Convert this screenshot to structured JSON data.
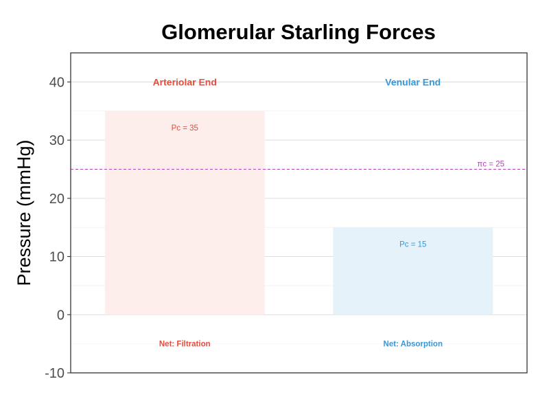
{
  "chart_data": {
    "type": "bar",
    "title": "Glomerular Starling Forces",
    "xlabel": "",
    "ylabel": "Pressure (mmHg)",
    "ylim": [
      -10,
      45
    ],
    "yticks": [
      -10,
      0,
      10,
      20,
      30,
      40
    ],
    "grid": true,
    "legend": "none",
    "categories": [
      "Arteriolar End",
      "Venular End"
    ],
    "values": [
      35,
      15
    ],
    "bar_labels": [
      "Pc = 35",
      "Pc = 15"
    ],
    "net_labels": [
      "Net: Filtration",
      "Net: Absorption"
    ],
    "colors": {
      "arteriolar": "#e74c3c",
      "venular": "#3498db",
      "arteriolar_fill": "#fdedeb",
      "venular_fill": "#e6f2fa",
      "reference": "#b345b8"
    },
    "reference_line": {
      "value": 25,
      "label": "πc = 25"
    }
  }
}
